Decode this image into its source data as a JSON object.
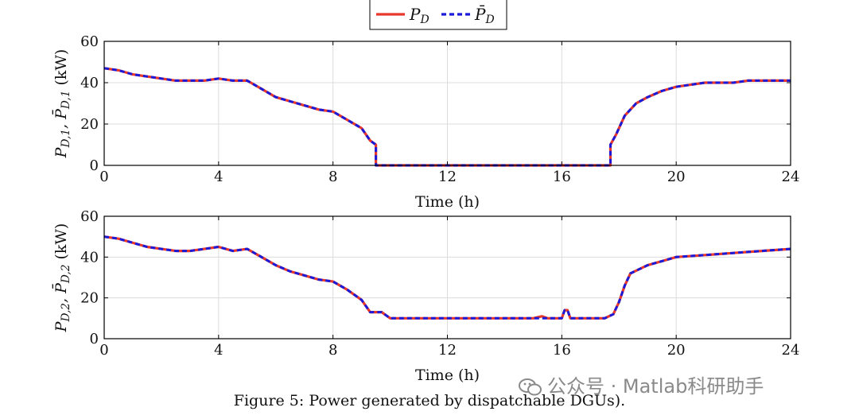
{
  "caption": "Figure 5: Power generated by dispatchable DGUs).",
  "watermark": "公众号 · Matlab科研助手",
  "colors": {
    "measured": "#e8382c",
    "reference": "#1a1ad8",
    "grid": "#dcdcdc",
    "axis": "#000000"
  },
  "legend": {
    "position": "top-center",
    "entries": [
      {
        "symbol": "P",
        "sub": "D",
        "bar": false,
        "style": "solid",
        "color": "#e8382c"
      },
      {
        "symbol": "P",
        "sub": "D",
        "bar": true,
        "style": "dashed",
        "color": "#1a1ad8"
      }
    ]
  },
  "chart_data": [
    {
      "type": "line",
      "ylabel": "P_{D,1}, P̄_{D,1} (kW)",
      "xlabel": "Time (h)",
      "xlim": [
        0,
        24
      ],
      "ylim": [
        0,
        60
      ],
      "xticks": [
        0,
        4,
        8,
        12,
        16,
        20,
        24
      ],
      "yticks": [
        0,
        20,
        40,
        60
      ],
      "grid": true,
      "series": [
        {
          "name": "P_D",
          "style": "solid",
          "color": "#e8382c",
          "x": [
            0,
            0.5,
            1,
            1.5,
            2,
            2.5,
            3,
            3.5,
            4,
            4.5,
            5,
            5.5,
            6,
            6.5,
            7,
            7.5,
            8,
            8.5,
            9,
            9.3,
            9.5,
            9.5,
            17.7,
            17.7,
            17.9,
            18.2,
            18.6,
            19,
            19.5,
            20,
            20.5,
            21,
            21.5,
            22,
            22.5,
            23,
            23.5,
            24
          ],
          "y": [
            47,
            46,
            44,
            43,
            42,
            41,
            41,
            41,
            42,
            41,
            41,
            37,
            33,
            31,
            29,
            27,
            26,
            22,
            18,
            12,
            10,
            0,
            0,
            10,
            15,
            24,
            30,
            33,
            36,
            38,
            39,
            40,
            40,
            40,
            41,
            41,
            41,
            41
          ]
        },
        {
          "name": "P̄_D",
          "style": "dashed",
          "color": "#1a1ad8",
          "x": [
            0,
            0.5,
            1,
            1.5,
            2,
            2.5,
            3,
            3.5,
            4,
            4.5,
            5,
            5.5,
            6,
            6.5,
            7,
            7.5,
            8,
            8.5,
            9,
            9.3,
            9.5,
            9.5,
            17.7,
            17.7,
            17.9,
            18.2,
            18.6,
            19,
            19.5,
            20,
            20.5,
            21,
            21.5,
            22,
            22.5,
            23,
            23.5,
            24
          ],
          "y": [
            47,
            46,
            44,
            43,
            42,
            41,
            41,
            41,
            42,
            41,
            41,
            37,
            33,
            31,
            29,
            27,
            26,
            22,
            18,
            12,
            10,
            0,
            0,
            10,
            15,
            24,
            30,
            33,
            36,
            38,
            39,
            40,
            40,
            40,
            41,
            41,
            41,
            41
          ]
        }
      ]
    },
    {
      "type": "line",
      "ylabel": "P_{D,2}, P̄_{D,2} (kW)",
      "xlabel": "Time (h)",
      "xlim": [
        0,
        24
      ],
      "ylim": [
        0,
        60
      ],
      "xticks": [
        0,
        4,
        8,
        12,
        16,
        20,
        24
      ],
      "yticks": [
        0,
        20,
        40,
        60
      ],
      "grid": true,
      "series": [
        {
          "name": "P_D",
          "style": "solid",
          "color": "#e8382c",
          "x": [
            0,
            0.5,
            1,
            1.5,
            2,
            2.5,
            3,
            3.5,
            4,
            4.5,
            5,
            5.5,
            6,
            6.5,
            7,
            7.5,
            8,
            8.5,
            9,
            9.3,
            9.5,
            9.7,
            10,
            12,
            15,
            15.3,
            15.5,
            16,
            16.1,
            16.2,
            16.3,
            17.5,
            17.8,
            18,
            18.2,
            18.4,
            18.7,
            19,
            19.5,
            20,
            21,
            22,
            23,
            24
          ],
          "y": [
            50,
            49,
            47,
            45,
            44,
            43,
            43,
            44,
            45,
            43,
            44,
            40,
            36,
            33,
            31,
            29,
            28,
            24,
            19,
            13,
            13,
            13,
            10,
            10,
            10,
            11,
            10,
            10,
            14,
            14,
            10,
            10,
            12,
            18,
            26,
            32,
            34,
            36,
            38,
            40,
            41,
            42,
            43,
            44
          ]
        },
        {
          "name": "P̄_D",
          "style": "dashed",
          "color": "#1a1ad8",
          "x": [
            0,
            0.5,
            1,
            1.5,
            2,
            2.5,
            3,
            3.5,
            4,
            4.5,
            5,
            5.5,
            6,
            6.5,
            7,
            7.5,
            8,
            8.5,
            9,
            9.3,
            9.5,
            9.7,
            10,
            12,
            15,
            15.3,
            15.5,
            16,
            16.1,
            16.2,
            16.3,
            17.5,
            17.8,
            18,
            18.2,
            18.4,
            18.7,
            19,
            19.5,
            20,
            21,
            22,
            23,
            24
          ],
          "y": [
            50,
            49,
            47,
            45,
            44,
            43,
            43,
            44,
            45,
            43,
            44,
            40,
            36,
            33,
            31,
            29,
            28,
            24,
            19,
            13,
            13,
            13,
            10,
            10,
            10,
            10,
            10,
            10,
            14,
            14,
            10,
            10,
            12,
            18,
            26,
            32,
            34,
            36,
            38,
            40,
            41,
            42,
            43,
            44
          ]
        }
      ]
    }
  ]
}
